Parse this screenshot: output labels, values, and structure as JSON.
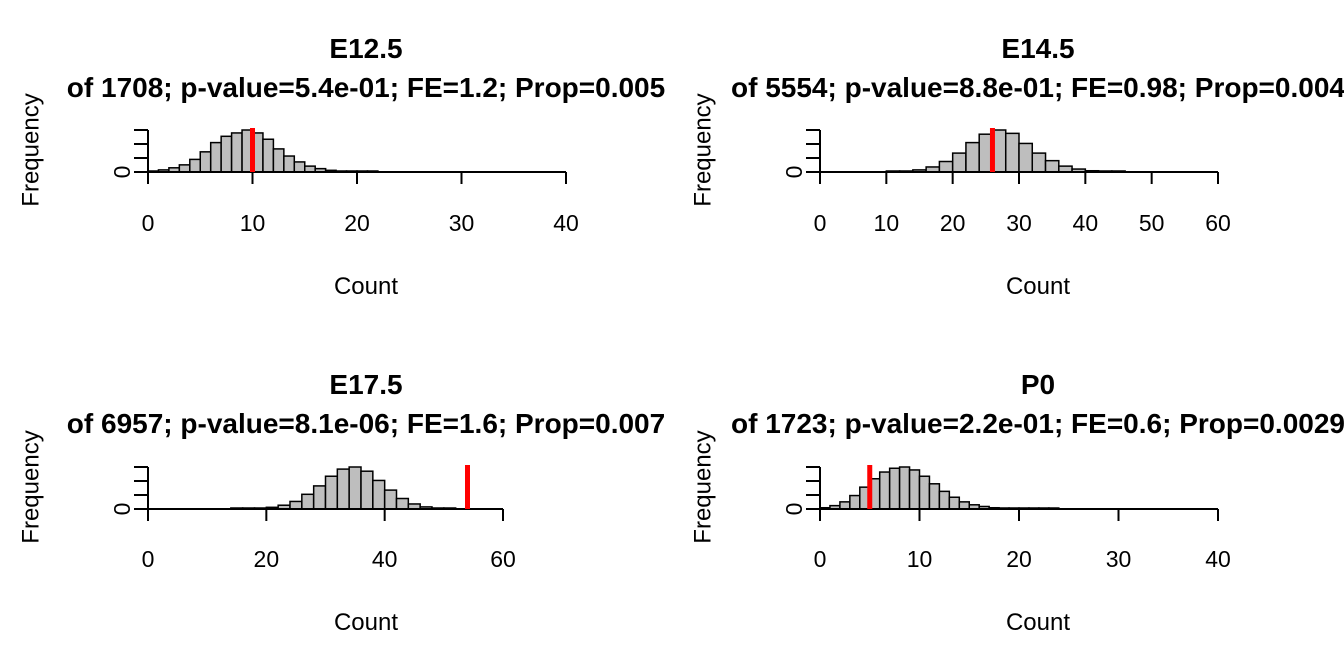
{
  "chart_data": [
    {
      "type": "histogram",
      "title": "E12.5",
      "subtitle": "of 1708; p-value=5.4e-01; FE=1.2; Prop=0.005",
      "xlabel": "Count",
      "ylabel": "Frequency",
      "x_ticks": [
        "0",
        "10",
        "20",
        "30",
        "40"
      ],
      "y_ticks": [
        "0"
      ],
      "xlim": [
        0,
        40
      ],
      "observed": 10,
      "bin_width": 1,
      "bins_start": 0,
      "freq_rel": [
        0.02,
        0.05,
        0.1,
        0.17,
        0.3,
        0.48,
        0.7,
        0.85,
        0.93,
        1.0,
        0.93,
        0.78,
        0.55,
        0.38,
        0.24,
        0.14,
        0.08,
        0.04,
        0.02,
        0.01,
        0.01,
        0.005
      ],
      "bar_fill": "#bebebe",
      "observed_color": "#ff0000"
    },
    {
      "type": "histogram",
      "title": "E14.5",
      "subtitle": "of 5554; p-value=8.8e-01; FE=0.98; Prop=0.004",
      "xlabel": "Count",
      "ylabel": "Frequency",
      "x_ticks": [
        "0",
        "10",
        "20",
        "30",
        "40",
        "50",
        "60"
      ],
      "y_ticks": [
        "0"
      ],
      "xlim": [
        0,
        60
      ],
      "observed": 26,
      "bin_width": 2,
      "bins_start": 10,
      "freq_rel": [
        0.01,
        0.02,
        0.05,
        0.12,
        0.25,
        0.45,
        0.7,
        0.9,
        1.0,
        0.92,
        0.68,
        0.45,
        0.27,
        0.14,
        0.07,
        0.03,
        0.01,
        0.005
      ],
      "bar_fill": "#bebebe",
      "observed_color": "#ff0000"
    },
    {
      "type": "histogram",
      "title": "E17.5",
      "subtitle": "of 6957; p-value=8.1e-06; FE=1.6; Prop=0.007",
      "xlabel": "Count",
      "ylabel": "Frequency",
      "x_ticks": [
        "0",
        "20",
        "40",
        "60"
      ],
      "y_ticks": [
        "0"
      ],
      "xlim": [
        0,
        60
      ],
      "observed": 54,
      "bin_width": 2,
      "bins_start": 14,
      "freq_rel": [
        0.005,
        0.01,
        0.02,
        0.04,
        0.09,
        0.18,
        0.35,
        0.55,
        0.78,
        0.95,
        1.0,
        0.9,
        0.68,
        0.45,
        0.25,
        0.12,
        0.05,
        0.02,
        0.01
      ],
      "bar_fill": "#bebebe",
      "observed_color": "#ff0000"
    },
    {
      "type": "histogram",
      "title": "P0",
      "subtitle": "of 1723; p-value=2.2e-01; FE=0.6; Prop=0.0029",
      "xlabel": "Count",
      "ylabel": "Frequency",
      "x_ticks": [
        "0",
        "10",
        "20",
        "30",
        "40"
      ],
      "y_ticks": [
        "0"
      ],
      "xlim": [
        0,
        40
      ],
      "observed": 5,
      "bin_width": 1,
      "bins_start": 0,
      "freq_rel": [
        0.03,
        0.08,
        0.17,
        0.32,
        0.52,
        0.72,
        0.88,
        0.97,
        1.0,
        0.93,
        0.78,
        0.6,
        0.42,
        0.28,
        0.17,
        0.1,
        0.06,
        0.03,
        0.02,
        0.01,
        0.005,
        0.003,
        0.002,
        0.001
      ],
      "bar_fill": "#bebebe",
      "observed_color": "#ff0000"
    }
  ]
}
